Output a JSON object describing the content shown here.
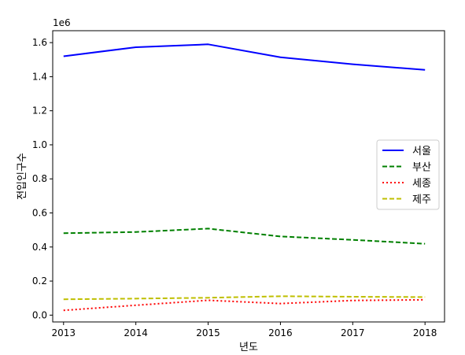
{
  "chart_data": {
    "type": "line",
    "title": "",
    "xlabel": "년도",
    "ylabel": "전입인구수",
    "y_offset_label": "1e6",
    "x": [
      2013,
      2014,
      2015,
      2016,
      2017,
      2018
    ],
    "xlim": [
      2012.85,
      2018.27
    ],
    "ylim": [
      -0.04,
      1.67
    ],
    "y_scale": 1000000,
    "y_ticks": [
      0.0,
      0.2,
      0.4,
      0.6,
      0.8,
      1.0,
      1.2,
      1.4,
      1.6
    ],
    "y_tick_labels": [
      "0.0",
      "0.2",
      "0.4",
      "0.6",
      "0.8",
      "1.0",
      "1.2",
      "1.4",
      "1.6"
    ],
    "x_tick_labels": [
      "2013",
      "2014",
      "2015",
      "2016",
      "2017",
      "2018"
    ],
    "grid": false,
    "legend_position": "center-right",
    "series": [
      {
        "name": "서울",
        "color": "#0000ff",
        "linestyle": "solid",
        "values": [
          1520000,
          1573000,
          1590000,
          1514000,
          1473000,
          1440000
        ]
      },
      {
        "name": "부산",
        "color": "#008000",
        "linestyle": "dashed",
        "values": [
          481000,
          488000,
          508000,
          462000,
          442000,
          419000
        ]
      },
      {
        "name": "세종",
        "color": "#ff0000",
        "linestyle": "dotted",
        "values": [
          28000,
          58000,
          87000,
          68000,
          86000,
          90000
        ]
      },
      {
        "name": "제주",
        "color": "#bfbf00",
        "linestyle": "dashed",
        "values": [
          93000,
          97000,
          102000,
          111000,
          108000,
          106000
        ]
      }
    ]
  }
}
